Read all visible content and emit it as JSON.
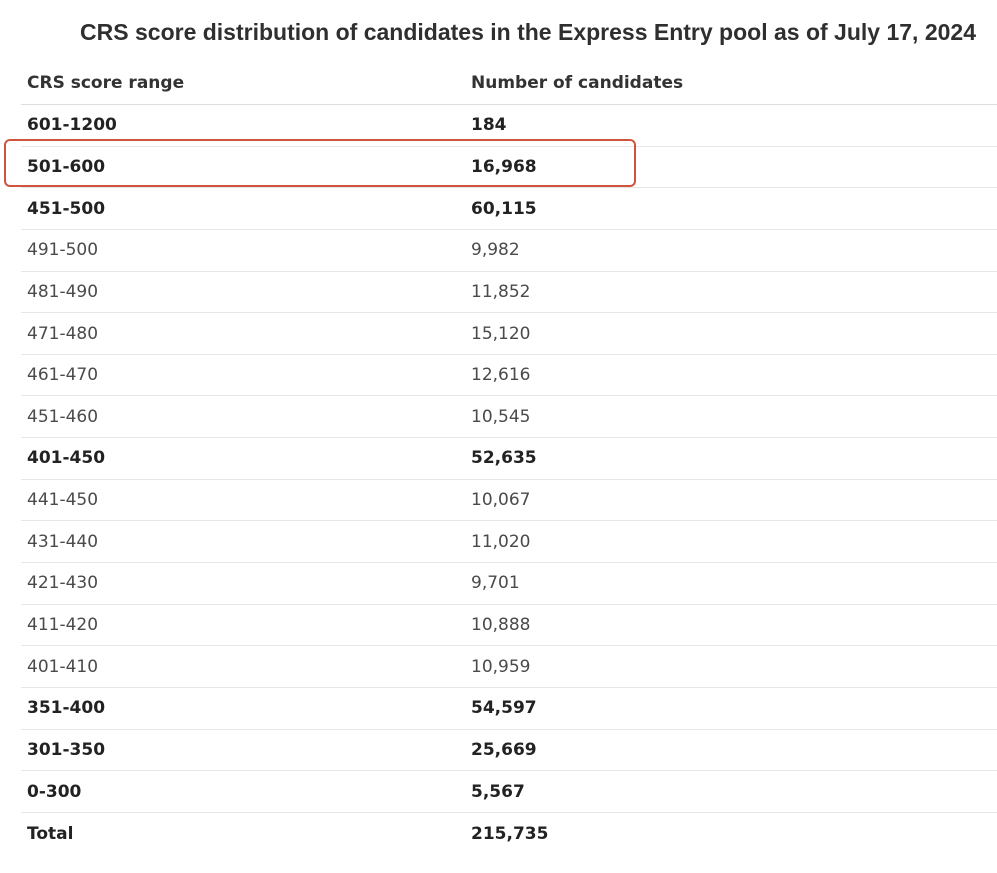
{
  "title": "CRS score distribution of candidates in the Express Entry pool as of July 17, 2024",
  "table": {
    "headers": {
      "range": "CRS score range",
      "count": "Number of candidates"
    },
    "rows": [
      {
        "range": "601-1200",
        "count": "184",
        "bold": true
      },
      {
        "range": "501-600",
        "count": "16,968",
        "bold": true,
        "highlighted": true
      },
      {
        "range": "451-500",
        "count": "60,115",
        "bold": true
      },
      {
        "range": "491-500",
        "count": "9,982",
        "bold": false
      },
      {
        "range": "481-490",
        "count": "11,852",
        "bold": false
      },
      {
        "range": "471-480",
        "count": "15,120",
        "bold": false
      },
      {
        "range": "461-470",
        "count": "12,616",
        "bold": false
      },
      {
        "range": "451-460",
        "count": "10,545",
        "bold": false
      },
      {
        "range": "401-450",
        "count": "52,635",
        "bold": true
      },
      {
        "range": "441-450",
        "count": "10,067",
        "bold": false
      },
      {
        "range": "431-440",
        "count": "11,020",
        "bold": false
      },
      {
        "range": "421-430",
        "count": "9,701",
        "bold": false
      },
      {
        "range": "411-420",
        "count": "10,888",
        "bold": false
      },
      {
        "range": "401-410",
        "count": "10,959",
        "bold": false
      },
      {
        "range": "351-400",
        "count": "54,597",
        "bold": true
      },
      {
        "range": "301-350",
        "count": "25,669",
        "bold": true
      },
      {
        "range": "0-300",
        "count": "5,567",
        "bold": true
      },
      {
        "range": "Total",
        "count": "215,735",
        "bold": true
      }
    ]
  },
  "colors": {
    "highlight_border": "#d0533e"
  }
}
